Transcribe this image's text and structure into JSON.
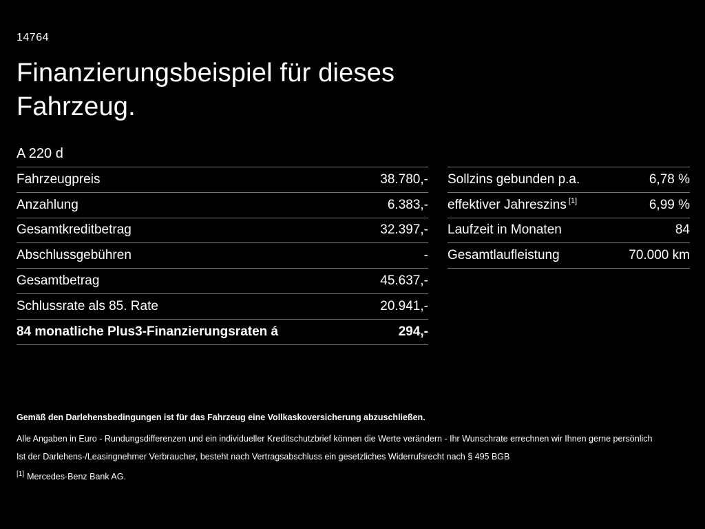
{
  "page": {
    "id": "14764",
    "title": "Finanzierungsbeispiel für dieses Fahrzeug.",
    "model": "A 220 d"
  },
  "left_table": {
    "rows": [
      {
        "label": "Fahrzeugpreis",
        "value": "38.780,-"
      },
      {
        "label": "Anzahlung",
        "value": "6.383,-"
      },
      {
        "label": "Gesamtkreditbetrag",
        "value": "32.397,-"
      },
      {
        "label": "Abschlussgebühren",
        "value": "-"
      },
      {
        "label": "Gesamtbetrag",
        "value": "45.637,-"
      },
      {
        "label": "Schlussrate als 85. Rate",
        "value": "20.941,-"
      },
      {
        "label": "84 monatliche Plus3-Finanzierungsraten á",
        "value": "294,-"
      }
    ]
  },
  "right_table": {
    "rows": [
      {
        "label": "Sollzins gebunden p.a.",
        "sup": "",
        "value": "6,78 %"
      },
      {
        "label": "effektiver Jahreszins",
        "sup": "[1]",
        "value": "6,99 %"
      },
      {
        "label": "Laufzeit in Monaten",
        "sup": "",
        "value": "84"
      },
      {
        "label": "Gesamtlaufleistung",
        "sup": "",
        "value": "70.000 km"
      }
    ]
  },
  "footer": {
    "line_bold": "Gemäß den Darlehensbedingungen ist für das Fahrzeug eine Vollkaskoversicherung abzuschließen.",
    "line2": "Alle Angaben in Euro - Rundungsdifferenzen und ein individueller Kreditschutzbrief können die Werte verändern - Ihr Wunschrate errechnen wir Ihnen gerne persönlich",
    "line3": "Ist der Darlehens-/Leasingnehmer Verbraucher, besteht nach Vertragsabschluss ein gesetzliches Widerrufsrecht nach § 495 BGB",
    "footnote_marker": "[1]",
    "footnote_text": "Mercedes-Benz Bank AG."
  },
  "colors": {
    "background": "#000000",
    "text": "#ffffff",
    "divider": "#787878"
  }
}
